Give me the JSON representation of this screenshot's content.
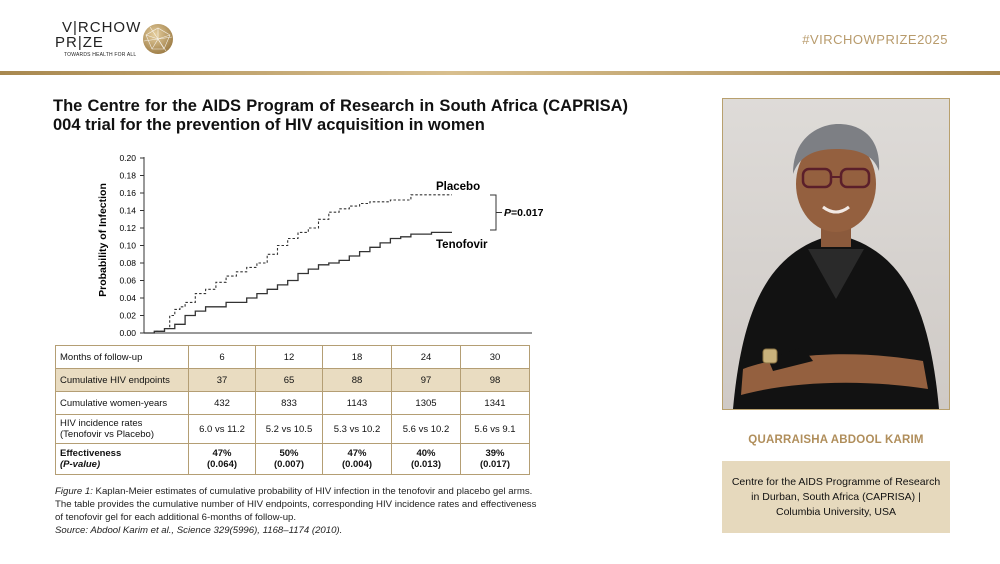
{
  "logo": {
    "line1": "V|RCHOW",
    "line2": "PR|ZE",
    "tagline": "TOWARDS HEALTH FOR ALL"
  },
  "hashtag": "#VIRCHOWPRIZE2025",
  "title": "The Centre for the AIDS Program of Research in South Africa (CAPRISA) 004 trial for the prevention of HIV acquisition in women",
  "chart_data": {
    "type": "line",
    "ylabel": "Probability of Infection",
    "xlabel": "",
    "ylim": [
      0,
      0.2
    ],
    "yticks": [
      "0.00",
      "0.02",
      "0.04",
      "0.06",
      "0.08",
      "0.10",
      "0.12",
      "0.14",
      "0.16",
      "0.18",
      "0.20"
    ],
    "xlim": [
      0,
      30
    ],
    "series": [
      {
        "name": "Placebo",
        "style": "dashed",
        "x": [
          0,
          1,
          2,
          2.5,
          3,
          3.5,
          4,
          5,
          6,
          7,
          8,
          9,
          10,
          11,
          12,
          13,
          14,
          15,
          16,
          17,
          18,
          19,
          20,
          21,
          22,
          24,
          26,
          28,
          30
        ],
        "y": [
          0,
          0.002,
          0.005,
          0.02,
          0.027,
          0.03,
          0.035,
          0.045,
          0.05,
          0.058,
          0.065,
          0.07,
          0.075,
          0.08,
          0.09,
          0.1,
          0.108,
          0.115,
          0.12,
          0.13,
          0.138,
          0.142,
          0.145,
          0.148,
          0.15,
          0.152,
          0.158,
          0.158,
          0.158
        ]
      },
      {
        "name": "Tenofovir",
        "style": "solid",
        "x": [
          0,
          1,
          2,
          3,
          4,
          5,
          6,
          8,
          10,
          11,
          12,
          13,
          14,
          15,
          16,
          17,
          18,
          19,
          20,
          21,
          22,
          23,
          24,
          25,
          26,
          28,
          30
        ],
        "y": [
          0,
          0.002,
          0.005,
          0.01,
          0.02,
          0.025,
          0.03,
          0.035,
          0.04,
          0.045,
          0.05,
          0.055,
          0.06,
          0.068,
          0.073,
          0.078,
          0.08,
          0.083,
          0.088,
          0.093,
          0.098,
          0.103,
          0.108,
          0.11,
          0.113,
          0.115,
          0.115
        ]
      }
    ],
    "annotation": "P=0.017",
    "annotation_p": "P",
    "annotation_rest": "=0.017",
    "grid": false
  },
  "table": {
    "rows": [
      {
        "label": "Months of follow-up",
        "cells": [
          "6",
          "12",
          "18",
          "24",
          "30"
        ],
        "highlight": false
      },
      {
        "label": "Cumulative HIV endpoints",
        "cells": [
          "37",
          "65",
          "88",
          "97",
          "98"
        ],
        "highlight": true
      },
      {
        "label": "Cumulative women-years",
        "cells": [
          "432",
          "833",
          "1143",
          "1305",
          "1341"
        ],
        "highlight": false
      },
      {
        "label": "HIV incidence rates (Tenofovir vs Placebo)",
        "label_l1": "HIV incidence rates",
        "label_l2": "(Tenofovir vs Placebo)",
        "cells": [
          "6.0 vs 11.2",
          "5.2 vs 10.5",
          "5.3 vs 10.2",
          "5.6 vs 10.2",
          "5.6 vs 9.1"
        ],
        "highlight": false
      },
      {
        "label": "Effectiveness (P-value)",
        "label_l1": "Effectiveness",
        "label_l2": "(P-value)",
        "cells_l1": [
          "47%",
          "50%",
          "47%",
          "40%",
          "39%"
        ],
        "cells_l2": [
          "(0.064)",
          "(0.007)",
          "(0.004)",
          "(0.013)",
          "(0.017)"
        ],
        "highlight": false
      }
    ]
  },
  "caption": {
    "figure": "Figure 1:",
    "text": " Kaplan-Meier estimates of cumulative probability of HIV infection in the tenofovir and placebo gel arms. The table provides the cumulative number of HIV endpoints, corresponding HIV incidence rates and effectiveness of tenofovir gel for each additional 6-months of follow-up.",
    "source": "Source: Abdool Karim et al., Science 329(5996), 1168–1174 (2010)."
  },
  "laureate": {
    "name": "QUARRAISHA ABDOOL KARIM",
    "affiliation": "Centre for the AIDS Programme of Research in Durban, South Africa (CAPRISA) | Columbia University, USA"
  },
  "colors": {
    "gold": "#b08e5b",
    "gold_rule": "#c4a877",
    "panel_bg": "#e6d9bd",
    "table_highlight": "#e9dcc1"
  }
}
